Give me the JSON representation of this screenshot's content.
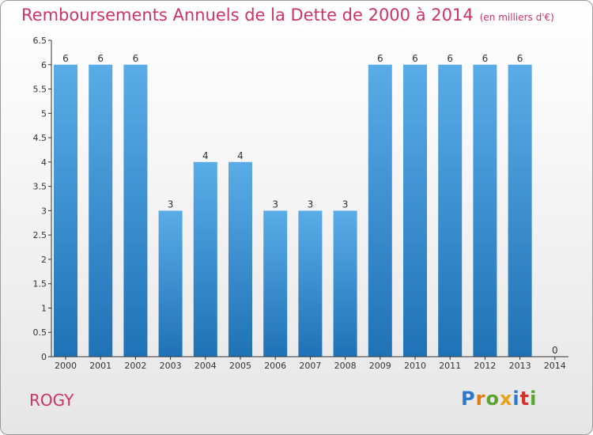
{
  "header": {
    "title": "Remboursements Annuels de la Dette de 2000 à 2014",
    "subtitle": "(en milliers d'€)"
  },
  "footer": {
    "commune": "ROGY",
    "logo": [
      "P",
      "r",
      "o",
      "x",
      "i",
      "t",
      "i"
    ]
  },
  "colors": {
    "title": "#cc3366",
    "bar_top": "#5aace8",
    "bar_bottom": "#1f72b5",
    "axis": "#333333"
  },
  "chart_data": {
    "type": "bar",
    "categories": [
      "2000",
      "2001",
      "2002",
      "2003",
      "2004",
      "2005",
      "2006",
      "2007",
      "2008",
      "2009",
      "2010",
      "2011",
      "2012",
      "2013",
      "2014"
    ],
    "values": [
      6,
      6,
      6,
      3,
      4,
      4,
      3,
      3,
      3,
      6,
      6,
      6,
      6,
      6,
      0
    ],
    "data_labels": [
      "6",
      "6",
      "6",
      "3",
      "4",
      "4",
      "3",
      "3",
      "3",
      "6",
      "6",
      "6",
      "6",
      "6",
      "0"
    ],
    "yticks": [
      0,
      0.5,
      1,
      1.5,
      2,
      2.5,
      3,
      3.5,
      4,
      4.5,
      5,
      5.5,
      6,
      6.5
    ],
    "ytick_labels": [
      "0",
      "0.5",
      "1",
      "1.5",
      "2",
      "2.5",
      "3",
      "3.5",
      "4",
      "4.5",
      "5",
      "5.5",
      "6",
      "6.5"
    ],
    "ylim": [
      0,
      6.5
    ],
    "title": "Remboursements Annuels de la Dette de 2000 à 2014",
    "xlabel": "",
    "ylabel": "",
    "grid": false
  }
}
